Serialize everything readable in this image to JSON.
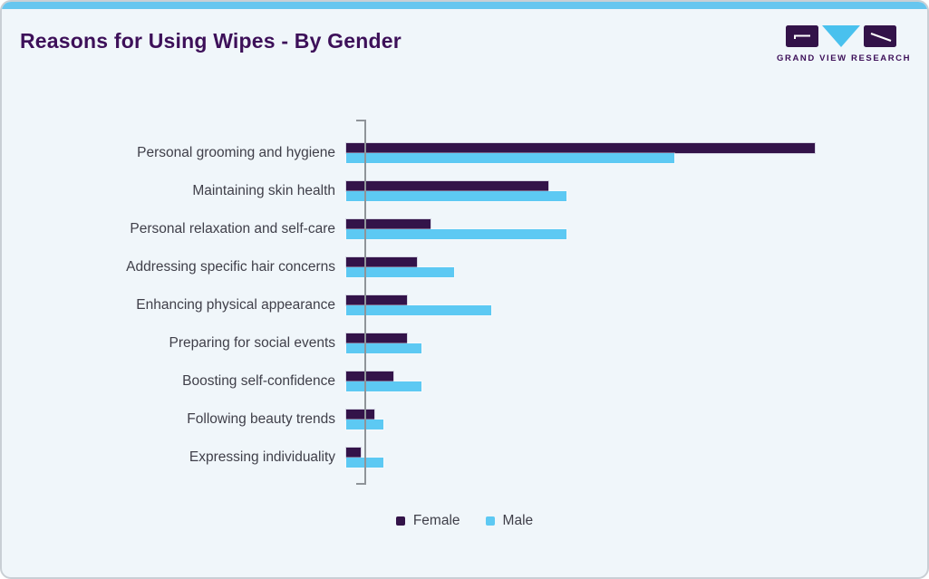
{
  "page": {
    "title": "Reasons for Using Wipes - By Gender"
  },
  "logo": {
    "text": "GRAND VIEW RESEARCH"
  },
  "colors": {
    "accent_blue": "#67c6ef",
    "female_bar": "#331349",
    "male_bar": "#5dc9f3",
    "title_purple": "#3d1059",
    "label_gray": "#3f3f49",
    "axis_gray": "#8f9499",
    "card_background": "#f0f6fa"
  },
  "chart_data": {
    "type": "bar",
    "orientation": "horizontal",
    "title": "Reasons for Using Wipes - By Gender",
    "xlabel": "",
    "ylabel": "",
    "categories": [
      "Personal grooming and hygiene",
      "Maintaining skin health",
      "Personal relaxation and self-care",
      "Addressing specific hair concerns",
      "Enhancing physical appearance",
      "Preparing for social events",
      "Boosting self-confidence",
      "Following beauty trends",
      "Expressing individuality"
    ],
    "series": [
      {
        "name": "Female",
        "color": "#331349",
        "values": [
          100,
          43,
          18,
          15,
          13,
          13,
          10,
          6,
          3
        ]
      },
      {
        "name": "Male",
        "color": "#5dc9f3",
        "values": [
          70,
          47,
          47,
          23,
          31,
          16,
          16,
          8,
          8
        ]
      }
    ],
    "value_scale": "relative index (no numeric axis labels shown in chart)",
    "xlim": [
      0,
      120
    ],
    "grid": false,
    "axis_tick_labels_visible": false,
    "legend_position": "bottom-center"
  }
}
